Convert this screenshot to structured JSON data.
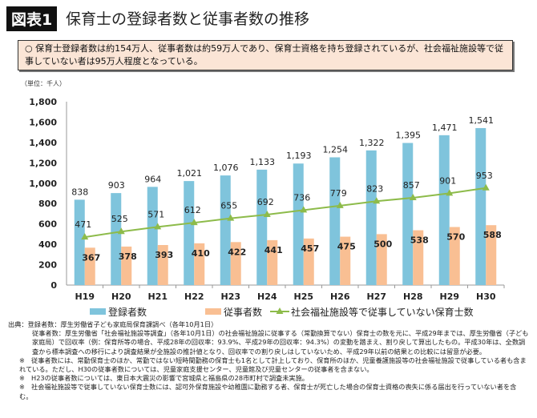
{
  "header": {
    "badge": "図表1",
    "title": "保育士の登録者数と従事者数の推移"
  },
  "summary": "○ 保育士登録者数は約154万人、従事者数は約59万人であり、保育士資格を持ち登録されているが、社会福祉施設等で従事していない者は95万人程度となっている。",
  "chart_data": {
    "type": "bar",
    "unit_label": "（単位：千人）",
    "categories": [
      "H19",
      "H20",
      "H21",
      "H22",
      "H23",
      "H24",
      "H25",
      "H26",
      "H27",
      "H28",
      "H29",
      "H30"
    ],
    "series": [
      {
        "name": "登録者数",
        "kind": "bar",
        "color": "#7fc4dc",
        "values": [
          838,
          903,
          964,
          1021,
          1076,
          1133,
          1193,
          1254,
          1322,
          1395,
          1471,
          1541
        ],
        "labels": [
          "838",
          "903",
          "964",
          "1,021",
          "1,076",
          "1,133",
          "1,193",
          "1,254",
          "1,322",
          "1,395",
          "1,471",
          "1,541"
        ]
      },
      {
        "name": "従事者数",
        "kind": "bar",
        "color": "#f9bf93",
        "values": [
          367,
          378,
          393,
          410,
          422,
          441,
          457,
          475,
          500,
          538,
          570,
          588
        ],
        "labels": [
          "367",
          "378",
          "393",
          "410",
          "422",
          "441",
          "457",
          "475",
          "500",
          "538",
          "570",
          "588"
        ]
      },
      {
        "name": "社会福祉施設等で従事していない保育士数",
        "kind": "line",
        "color": "#8dbb4a",
        "values": [
          471,
          525,
          571,
          612,
          655,
          692,
          736,
          779,
          823,
          857,
          901,
          953
        ],
        "labels": [
          "471",
          "525",
          "571",
          "612",
          "655",
          "692",
          "736",
          "779",
          "823",
          "857",
          "901",
          "953"
        ]
      }
    ],
    "ylim": [
      0,
      1800
    ],
    "yticks": [
      "0",
      "200",
      "400",
      "600",
      "800",
      "1,000",
      "1,200",
      "1,400",
      "1,600",
      "1,800"
    ],
    "grid": false,
    "legend_placement": "bottom"
  },
  "notes": [
    "出典：登録者数：厚生労働省子ども家庭局保育課調べ（各年10月1日）",
    "従事者数：厚生労働省「社会福祉施設等調査」（各年10月1日）の社会福祉施設に従事する（常勤換算でない）保育士の数を元に、平成29年までは、厚生労働省（子ども家庭局）で回収率（例：保育所等の場合、平成28年の回収率：93.9%、平成29年の回収率：94.3%）の変動を踏まえ、割り戻して算出したもの。平成30年は、全数調査から標本調査への移行により調査結果が全施設の推計値となり、回収率での割り戻しはしていないため、平成29年以前の結果との比較には留意が必要。",
    "※　従事者数には、常勤保育士のほか、常勤ではない短時間勤務の保育士も1名として計上しており、保育所のほか、児童養護施設等の社会福祉施設で従事している者も含まれている。ただし、H30の従事者数については、児童家庭支援センター、児童館及び児童センターの従事者を含まない。",
    "※　H23の従事者数については、東日本大震災の影響で宮城県と福島県の28市町村で調査未実施。",
    "※　社会福祉施設等で従事していない保育士数には、認可外保育施設や幼稚園に勤務する者、保育士が死亡した場合の保育士資格の喪失に係る届出を行っていない者を含む。"
  ]
}
